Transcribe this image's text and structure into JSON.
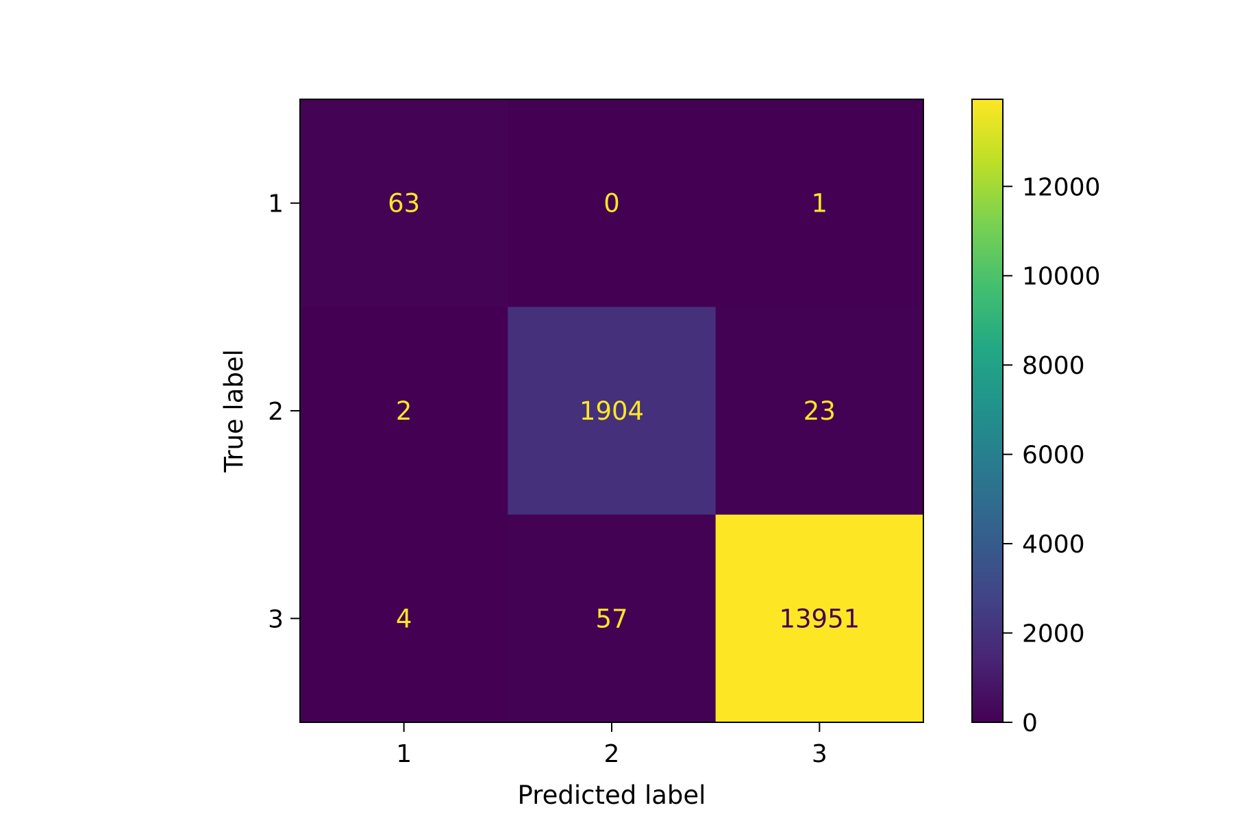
{
  "chart_data": {
    "type": "heatmap",
    "title": "",
    "xlabel": "Predicted label",
    "ylabel": "True label",
    "x_categories": [
      "1",
      "2",
      "3"
    ],
    "y_categories": [
      "1",
      "2",
      "3"
    ],
    "values": [
      [
        63,
        0,
        1
      ],
      [
        2,
        1904,
        23
      ],
      [
        4,
        57,
        13951
      ]
    ],
    "colormap": "viridis",
    "colorbar": {
      "range": [
        0,
        13951
      ],
      "ticks": [
        0,
        2000,
        4000,
        6000,
        8000,
        10000,
        12000
      ],
      "tick_labels": [
        "0",
        "2000",
        "4000",
        "6000",
        "8000",
        "10000",
        "12000"
      ]
    },
    "colors": {
      "low": "#440154",
      "high": "#fde725",
      "text_on_dark": "#fde725",
      "text_on_light": "#440154"
    },
    "grid": false
  }
}
